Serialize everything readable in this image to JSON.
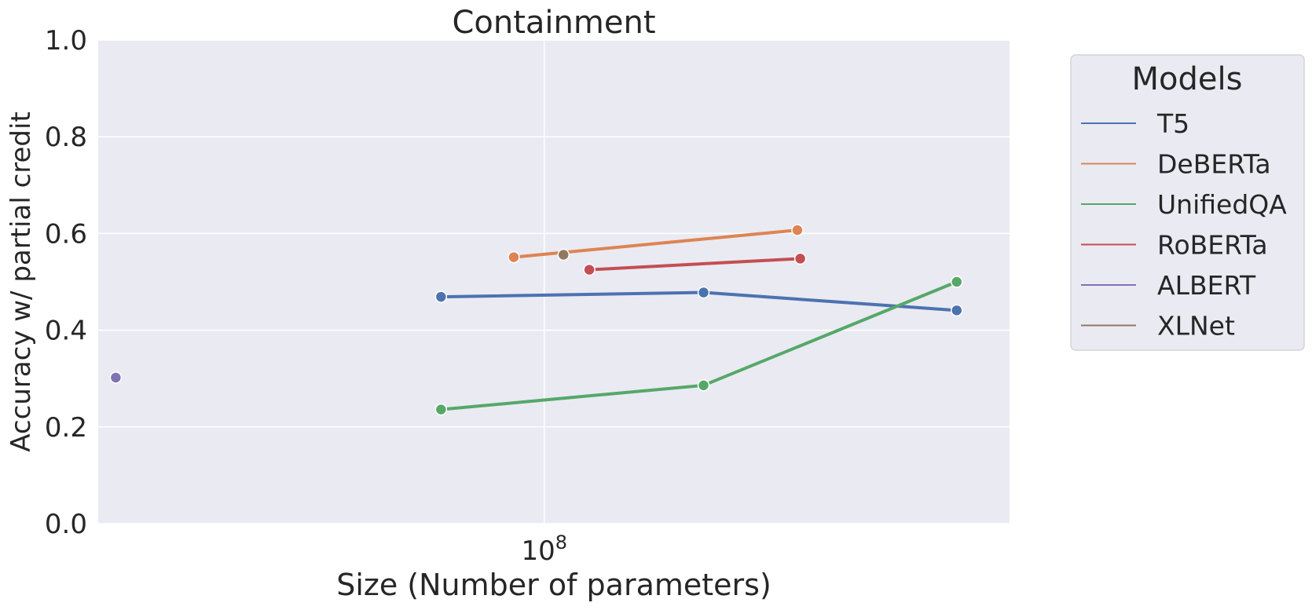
{
  "chart_data": {
    "type": "line",
    "title": "Containment",
    "xlabel": "Size (Number of parameters)",
    "ylabel": "Accuracy w/ partial credit",
    "x_scale": "log",
    "xlim": [
      11000000,
      1000000000
    ],
    "ylim": [
      0,
      1
    ],
    "x_ticks": [
      {
        "value": 100000000,
        "base": "10",
        "exp": "8"
      }
    ],
    "y_ticks": [
      {
        "value": 0.0,
        "label": "0.0"
      },
      {
        "value": 0.2,
        "label": "0.2"
      },
      {
        "value": 0.4,
        "label": "0.4"
      },
      {
        "value": 0.6,
        "label": "0.6"
      },
      {
        "value": 0.8,
        "label": "0.8"
      },
      {
        "value": 1.0,
        "label": "1.0"
      }
    ],
    "grid": true,
    "background": "#eaeaf2",
    "legend": {
      "title": "Models",
      "placement": "outside-right"
    },
    "series": [
      {
        "name": "T5",
        "color": "#4c72b0",
        "points": [
          {
            "x": 60000000,
            "y": 0.469
          },
          {
            "x": 220000000,
            "y": 0.478
          },
          {
            "x": 770000000,
            "y": 0.441
          }
        ]
      },
      {
        "name": "DeBERTa",
        "color": "#dd8452",
        "points": [
          {
            "x": 86000000,
            "y": 0.551
          },
          {
            "x": 350000000,
            "y": 0.607
          }
        ]
      },
      {
        "name": "UnifiedQA",
        "color": "#55a868",
        "points": [
          {
            "x": 60000000,
            "y": 0.236
          },
          {
            "x": 220000000,
            "y": 0.286
          },
          {
            "x": 770000000,
            "y": 0.5
          }
        ]
      },
      {
        "name": "RoBERTa",
        "color": "#c44e52",
        "points": [
          {
            "x": 125000000,
            "y": 0.525
          },
          {
            "x": 355000000,
            "y": 0.548
          }
        ]
      },
      {
        "name": "ALBERT",
        "color": "#8172b3",
        "points": [
          {
            "x": 12000000,
            "y": 0.302
          }
        ]
      },
      {
        "name": "XLNet",
        "color": "#937860",
        "points": [
          {
            "x": 110000000,
            "y": 0.556
          }
        ]
      }
    ]
  }
}
